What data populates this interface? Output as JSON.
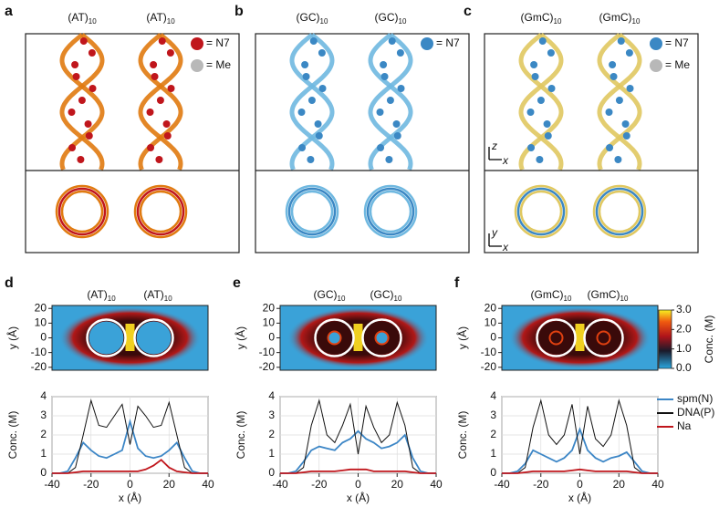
{
  "panels_top": [
    {
      "letter": "a",
      "labels": [
        {
          "text": "(AT)",
          "sub": "10"
        },
        {
          "text": "(AT)",
          "sub": "10"
        }
      ],
      "legend": [
        {
          "label": "= N7",
          "color": "#c0161c"
        },
        {
          "label": "= Me",
          "color": "#b8b8b8"
        }
      ]
    },
    {
      "letter": "b",
      "labels": [
        {
          "text": "(GC)",
          "sub": "10"
        },
        {
          "text": "(GC)",
          "sub": "10"
        }
      ],
      "legend": [
        {
          "label": "= N7",
          "color": "#3b88c4"
        }
      ]
    },
    {
      "letter": "c",
      "labels": [
        {
          "text": "(GmC)",
          "sub": "10"
        },
        {
          "text": "(GmC)",
          "sub": "10"
        }
      ],
      "legend": [
        {
          "label": "= N7",
          "color": "#3b88c4"
        },
        {
          "label": "= Me",
          "color": "#b8b8b8"
        }
      ],
      "axes": [
        {
          "v": "z",
          "h": "x"
        },
        {
          "v": "y",
          "h": "x"
        }
      ]
    }
  ],
  "colorbar": {
    "label": "Conc. (M)",
    "lim": [
      0,
      3
    ],
    "ticks": [
      {
        "value": 0,
        "label": "0.0"
      },
      {
        "value": 1,
        "label": "1.0"
      },
      {
        "value": 2,
        "label": "2.0"
      },
      {
        "value": 3,
        "label": "3.0"
      }
    ]
  },
  "chart_data": [
    {
      "type": "line",
      "letter": "d",
      "labels": [
        {
          "text": "(AT)",
          "sub": "10"
        },
        {
          "text": "(AT)",
          "sub": "10"
        }
      ],
      "heatmap_ylabel": "y (Å)",
      "heatmap_ylim": [
        -22,
        22
      ],
      "heatmap_yticks": [
        20,
        10,
        0,
        -10,
        -20
      ],
      "xlabel": "x (Å)",
      "ylabel": "Conc. (M)",
      "xlim": [
        -40,
        40
      ],
      "xticks": [
        -40,
        -20,
        0,
        20,
        40
      ],
      "ylim": [
        0,
        4
      ],
      "yticks": [
        0,
        1,
        2,
        3,
        4
      ],
      "grid": true,
      "x": [
        -40,
        -36,
        -32,
        -28,
        -24,
        -20,
        -16,
        -12,
        -8,
        -4,
        0,
        4,
        8,
        12,
        16,
        20,
        24,
        28,
        32,
        36,
        40
      ],
      "series": [
        {
          "name": "spm(N)",
          "color": "#3c86c6",
          "values": [
            0,
            0,
            0.1,
            0.8,
            1.6,
            1.2,
            0.9,
            0.8,
            1.0,
            1.2,
            2.7,
            1.3,
            0.9,
            0.8,
            0.9,
            1.2,
            1.6,
            0.8,
            0.1,
            0,
            0
          ]
        },
        {
          "name": "DNA(P)",
          "color": "#111111",
          "values": [
            0,
            0,
            0,
            0.3,
            2.0,
            3.8,
            2.5,
            2.4,
            3.0,
            3.6,
            1.5,
            3.5,
            3.0,
            2.4,
            2.5,
            3.7,
            2.0,
            0.3,
            0,
            0,
            0
          ]
        },
        {
          "name": "Na",
          "color": "#c0161c",
          "values": [
            0,
            0,
            0,
            0.05,
            0.1,
            0.1,
            0.1,
            0.1,
            0.1,
            0.1,
            0.1,
            0.1,
            0.2,
            0.4,
            0.7,
            0.3,
            0.1,
            0.05,
            0,
            0,
            0
          ]
        }
      ]
    },
    {
      "type": "line",
      "letter": "e",
      "labels": [
        {
          "text": "(GC)",
          "sub": "10"
        },
        {
          "text": "(GC)",
          "sub": "10"
        }
      ],
      "heatmap_ylabel": "y (Å)",
      "heatmap_ylim": [
        -22,
        22
      ],
      "heatmap_yticks": [
        20,
        10,
        0,
        -10,
        -20
      ],
      "xlabel": "x (Å)",
      "ylabel": "Conc. (M)",
      "xlim": [
        -40,
        40
      ],
      "xticks": [
        -40,
        -20,
        0,
        20,
        40
      ],
      "ylim": [
        0,
        4
      ],
      "yticks": [
        0,
        1,
        2,
        3,
        4
      ],
      "grid": true,
      "x": [
        -40,
        -36,
        -32,
        -28,
        -24,
        -20,
        -16,
        -12,
        -8,
        -4,
        0,
        4,
        8,
        12,
        16,
        20,
        24,
        28,
        32,
        36,
        40
      ],
      "series": [
        {
          "name": "spm(N)",
          "color": "#3c86c6",
          "values": [
            0,
            0,
            0.1,
            0.6,
            1.2,
            1.4,
            1.3,
            1.2,
            1.6,
            1.8,
            2.2,
            1.8,
            1.6,
            1.3,
            1.4,
            1.6,
            2.0,
            0.8,
            0.1,
            0,
            0
          ]
        },
        {
          "name": "DNA(P)",
          "color": "#111111",
          "values": [
            0,
            0,
            0,
            0.3,
            2.5,
            3.8,
            2.0,
            1.6,
            2.5,
            3.6,
            1.0,
            3.5,
            2.4,
            1.6,
            2.0,
            3.7,
            2.5,
            0.3,
            0,
            0,
            0
          ]
        },
        {
          "name": "Na",
          "color": "#c0161c",
          "values": [
            0,
            0,
            0,
            0.05,
            0.1,
            0.1,
            0.1,
            0.1,
            0.15,
            0.2,
            0.2,
            0.2,
            0.1,
            0.1,
            0.1,
            0.1,
            0.1,
            0.05,
            0,
            0,
            0
          ]
        }
      ]
    },
    {
      "type": "line",
      "letter": "f",
      "labels": [
        {
          "text": "(GmC)",
          "sub": "10"
        },
        {
          "text": "(GmC)",
          "sub": "10"
        }
      ],
      "heatmap_ylabel": "y (Å)",
      "heatmap_ylim": [
        -22,
        22
      ],
      "heatmap_yticks": [
        20,
        10,
        0,
        -10,
        -20
      ],
      "xlabel": "x (Å)",
      "ylabel": "Conc. (M)",
      "xlim": [
        -40,
        40
      ],
      "xticks": [
        -40,
        -20,
        0,
        20,
        40
      ],
      "ylim": [
        0,
        4
      ],
      "yticks": [
        0,
        1,
        2,
        3,
        4
      ],
      "grid": true,
      "x": [
        -40,
        -36,
        -32,
        -28,
        -24,
        -20,
        -16,
        -12,
        -8,
        -4,
        0,
        4,
        8,
        12,
        16,
        20,
        24,
        28,
        32,
        36,
        40
      ],
      "series": [
        {
          "name": "spm(N)",
          "color": "#3c86c6",
          "values": [
            0,
            0,
            0.1,
            0.5,
            1.2,
            1.0,
            0.8,
            0.6,
            0.8,
            1.2,
            2.3,
            1.2,
            0.8,
            0.6,
            0.8,
            0.9,
            1.1,
            0.6,
            0.1,
            0,
            0
          ]
        },
        {
          "name": "DNA(P)",
          "color": "#111111",
          "values": [
            0,
            0,
            0,
            0.3,
            2.4,
            3.8,
            2.0,
            1.5,
            2.0,
            3.6,
            1.0,
            3.5,
            1.8,
            1.4,
            2.0,
            3.8,
            2.5,
            0.3,
            0,
            0,
            0
          ]
        },
        {
          "name": "Na",
          "color": "#c0161c",
          "values": [
            0,
            0,
            0,
            0.05,
            0.1,
            0.1,
            0.1,
            0.1,
            0.1,
            0.15,
            0.2,
            0.15,
            0.1,
            0.1,
            0.1,
            0.1,
            0.1,
            0.05,
            0,
            0,
            0
          ]
        }
      ]
    }
  ]
}
